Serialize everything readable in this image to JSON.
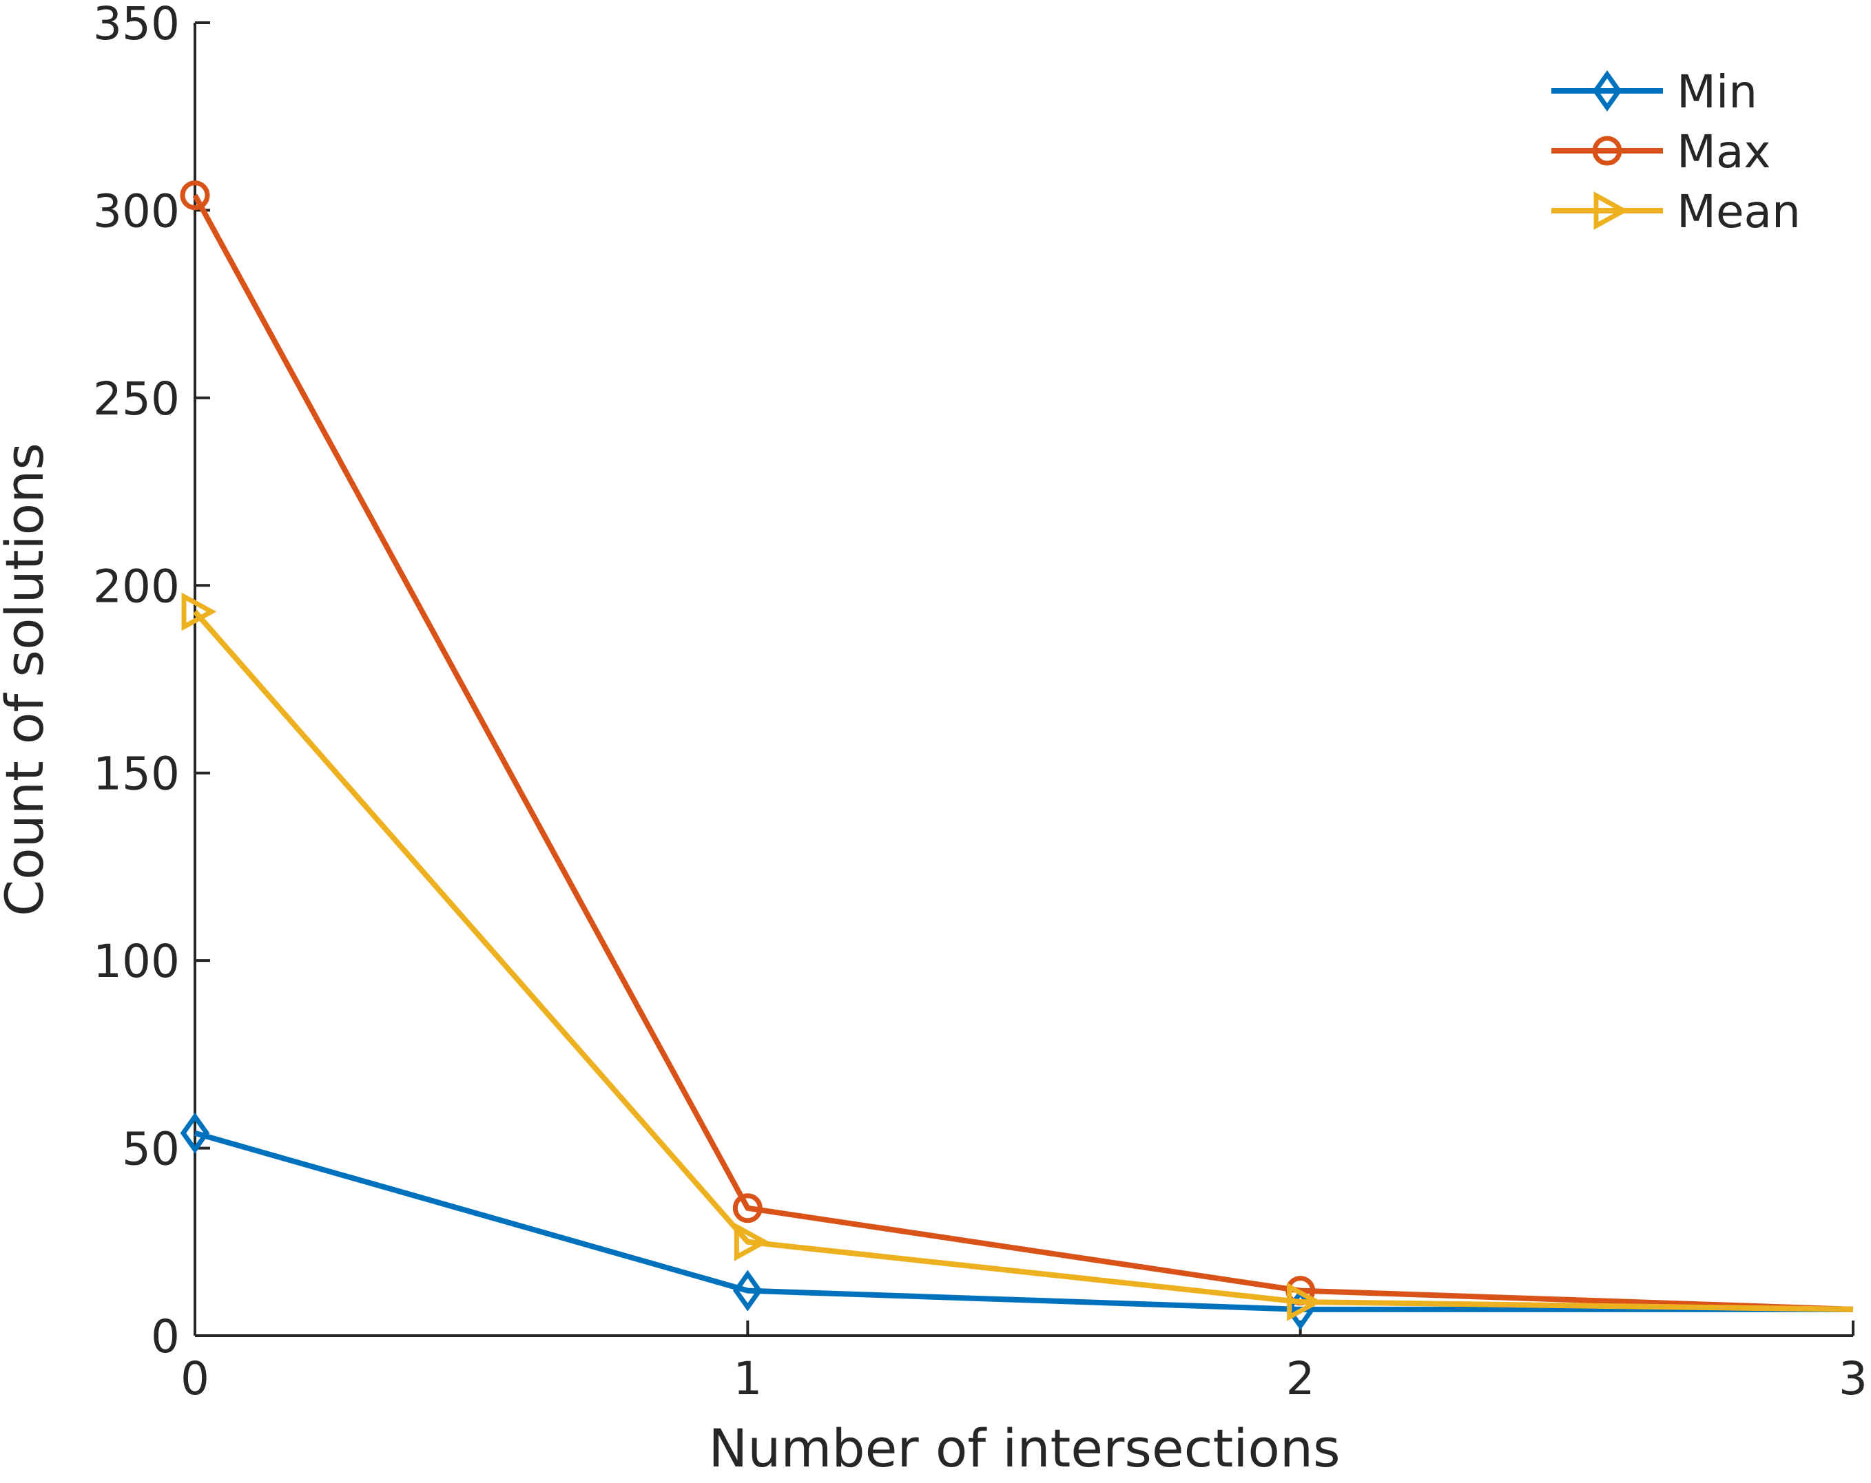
{
  "chart_data": {
    "type": "line",
    "title": "",
    "xlabel": "Number of intersections",
    "ylabel": "Count of solutions",
    "x": [
      0,
      1,
      2,
      3
    ],
    "xlim": [
      0,
      3
    ],
    "ylim": [
      0,
      350
    ],
    "xticks": [
      "0",
      "1",
      "2",
      "3"
    ],
    "yticks": [
      "0",
      "50",
      "100",
      "150",
      "200",
      "250",
      "300",
      "350"
    ],
    "grid": false,
    "legend_position": "top-right",
    "series": [
      {
        "name": "Min",
        "marker": "diamond",
        "color": "#0072BD",
        "values": [
          54,
          12,
          7,
          7
        ]
      },
      {
        "name": "Max",
        "marker": "circle",
        "color": "#D95319",
        "values": [
          304,
          34,
          12,
          7
        ]
      },
      {
        "name": "Mean",
        "marker": "triangle-right",
        "color": "#EDB120",
        "values": [
          193,
          25,
          9,
          7
        ]
      }
    ]
  }
}
